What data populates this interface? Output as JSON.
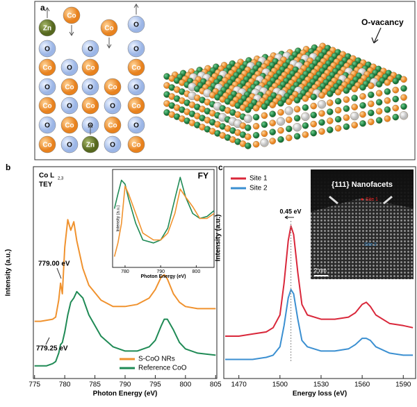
{
  "panel_a": {
    "label": "a",
    "annotation": "O-vacancy",
    "lattice": [
      [
        "Zn",
        "Co",
        null,
        "Co",
        "O"
      ],
      [
        "O",
        null,
        "O",
        null,
        "O"
      ],
      [
        "Co",
        "O",
        "Co",
        null,
        "Co"
      ],
      [
        "O",
        "Co",
        "O",
        "Co",
        "O"
      ],
      [
        "Co",
        "O",
        "Co",
        "O",
        "Co"
      ],
      [
        "O",
        "Co",
        "O",
        "Co",
        "O"
      ],
      [
        "Co",
        "O",
        "Zn",
        "O",
        "Co"
      ]
    ]
  },
  "chart_data": [
    {
      "type": "line",
      "panel_label": "b",
      "xlabel": "Photon Energy (eV)",
      "ylabel": "Intensity (a.u.)",
      "annotations": [
        "Co L",
        "2,3",
        "TEY",
        "779.00 eV",
        "779.25 eV"
      ],
      "legend": "lower right",
      "xlim": [
        774.8,
        805.2
      ],
      "xticks": [
        775,
        780,
        785,
        790,
        795,
        800,
        805
      ],
      "ylim": [
        0,
        100
      ],
      "x": [
        775,
        776,
        777,
        778,
        778.5,
        779,
        779.3,
        779.6,
        780,
        780.5,
        781,
        781.5,
        782,
        783,
        784,
        786,
        788,
        790,
        792,
        794,
        795,
        796,
        796.5,
        797,
        798,
        799,
        800,
        802,
        805
      ],
      "series": [
        {
          "name": "S-CoO NRs",
          "color": "#f0922e",
          "values": [
            27,
            27,
            27.5,
            28,
            29,
            37,
            45,
            40,
            62,
            75,
            70,
            74,
            65,
            52,
            44,
            37,
            34,
            34,
            35,
            38,
            42,
            48,
            49,
            47,
            40,
            36,
            34,
            33,
            33
          ]
        },
        {
          "name": "Reference CoO",
          "color": "#1f8a55",
          "values": [
            6,
            6,
            6,
            7,
            8,
            12,
            16,
            17,
            22,
            30,
            36,
            38,
            41,
            38,
            30,
            20,
            15,
            13,
            13,
            15,
            18,
            25,
            28,
            28,
            23,
            17,
            14,
            12,
            11
          ]
        }
      ]
    },
    {
      "type": "line",
      "title": "FY",
      "xlabel": "Photon Energy (eV)",
      "ylabel": "Intensity (a.u.)",
      "xlim": [
        776.5,
        805
      ],
      "xticks": [
        780,
        790,
        800
      ],
      "ylim": [
        0,
        100
      ],
      "x": [
        777,
        778,
        779,
        780,
        781,
        783,
        785,
        788,
        790,
        792,
        794,
        795.5,
        797,
        799,
        801,
        803,
        805
      ],
      "series": [
        {
          "color": "#1f8a55",
          "values": [
            60,
            75,
            89,
            85,
            70,
            45,
            28,
            25,
            28,
            40,
            70,
            92,
            72,
            55,
            50,
            52,
            58
          ]
        },
        {
          "color": "#f0922e",
          "values": [
            11,
            25,
            45,
            83,
            75,
            55,
            35,
            28,
            28,
            35,
            55,
            80,
            72,
            62,
            50,
            50,
            55
          ]
        }
      ]
    },
    {
      "type": "line",
      "panel_label": "c",
      "xlabel": "Energy loss (eV)",
      "ylabel": "Intensity (a.u.)",
      "annotations": [
        "0.45 eV"
      ],
      "image_labels": [
        "{111} Nanofacets",
        "Site 1",
        "Site 2",
        "2 nm"
      ],
      "legend": "upper left",
      "xlim": [
        1459,
        1599
      ],
      "xticks": [
        1470,
        1500,
        1530,
        1560,
        1590
      ],
      "ylim": [
        0,
        100
      ],
      "x": [
        1460,
        1470,
        1480,
        1490,
        1495,
        1500,
        1503,
        1506,
        1508,
        1510,
        1513,
        1516,
        1520,
        1530,
        1540,
        1550,
        1555,
        1560,
        1563,
        1566,
        1570,
        1580,
        1590,
        1597
      ],
      "series": [
        {
          "name": "Site 1",
          "color": "#d9273a",
          "values": [
            20,
            20,
            21,
            22,
            24,
            30,
            45,
            65,
            72,
            68,
            50,
            35,
            30,
            28,
            28,
            29,
            31,
            35,
            36,
            34,
            30,
            26,
            25,
            24
          ]
        },
        {
          "name": "Site 2",
          "color": "#3a8fd1",
          "values": [
            9,
            9,
            9,
            10,
            11,
            15,
            25,
            38,
            42,
            40,
            28,
            18,
            15,
            13,
            13,
            14,
            16,
            19,
            19,
            18,
            15,
            12,
            11,
            11
          ]
        }
      ]
    }
  ]
}
